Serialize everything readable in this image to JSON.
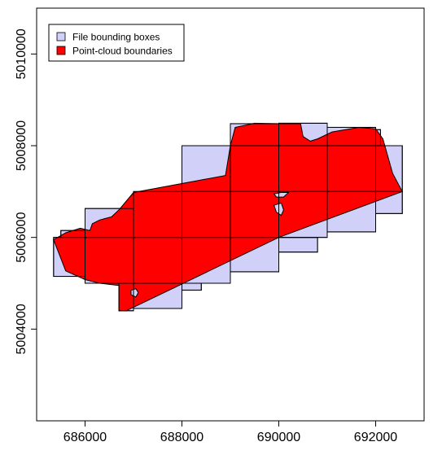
{
  "chart_data": {
    "type": "map",
    "title": "",
    "xlabel": "",
    "ylabel": "",
    "xlim": [
      685000,
      693000
    ],
    "ylim": [
      5002000,
      5011000
    ],
    "x_ticks": [
      686000,
      688000,
      690000,
      692000
    ],
    "y_ticks": [
      5004000,
      5006000,
      5008000,
      5010000
    ],
    "x_tick_labels": [
      "686000",
      "688000",
      "690000",
      "692000"
    ],
    "y_tick_labels": [
      "5004000",
      "5006000",
      "5008000",
      "5010000"
    ],
    "legend_position": "top-left",
    "legend": [
      {
        "label": "File bounding boxes",
        "color": "#d0d0f8"
      },
      {
        "label": "Point-cloud boundaries",
        "color": "#ff0000"
      }
    ],
    "file_bounding_boxes": [
      {
        "xmin": 685350,
        "xmax": 686000,
        "ymin": 5005150,
        "ymax": 5006000
      },
      {
        "xmin": 685500,
        "xmax": 686000,
        "ymin": 5006000,
        "ymax": 5006150
      },
      {
        "xmin": 686000,
        "xmax": 687000,
        "ymin": 5005000,
        "ymax": 5006000
      },
      {
        "xmin": 686000,
        "xmax": 687000,
        "ymin": 5006000,
        "ymax": 5006630
      },
      {
        "xmin": 686700,
        "xmax": 687000,
        "ymin": 5004400,
        "ymax": 5005000
      },
      {
        "xmin": 687000,
        "xmax": 688000,
        "ymin": 5004450,
        "ymax": 5005000
      },
      {
        "xmin": 687000,
        "xmax": 688000,
        "ymin": 5005000,
        "ymax": 5006000
      },
      {
        "xmin": 687000,
        "xmax": 688000,
        "ymin": 5006000,
        "ymax": 5007000
      },
      {
        "xmin": 688000,
        "xmax": 688400,
        "ymin": 5004850,
        "ymax": 5005000
      },
      {
        "xmin": 688000,
        "xmax": 689000,
        "ymin": 5005000,
        "ymax": 5006000
      },
      {
        "xmin": 688000,
        "xmax": 689000,
        "ymin": 5006000,
        "ymax": 5007000
      },
      {
        "xmin": 688000,
        "xmax": 689000,
        "ymin": 5007000,
        "ymax": 5008000
      },
      {
        "xmin": 689000,
        "xmax": 690000,
        "ymin": 5005250,
        "ymax": 5006000
      },
      {
        "xmin": 689000,
        "xmax": 690000,
        "ymin": 5006000,
        "ymax": 5007000
      },
      {
        "xmin": 689000,
        "xmax": 690000,
        "ymin": 5007000,
        "ymax": 5008000
      },
      {
        "xmin": 689000,
        "xmax": 690000,
        "ymin": 5008000,
        "ymax": 5008480
      },
      {
        "xmin": 690000,
        "xmax": 690800,
        "ymin": 5005680,
        "ymax": 5006000
      },
      {
        "xmin": 690000,
        "xmax": 691000,
        "ymin": 5006000,
        "ymax": 5007000
      },
      {
        "xmin": 690000,
        "xmax": 691000,
        "ymin": 5007000,
        "ymax": 5008000
      },
      {
        "xmin": 690000,
        "xmax": 691000,
        "ymin": 5008000,
        "ymax": 5008490
      },
      {
        "xmin": 691000,
        "xmax": 692000,
        "ymin": 5006120,
        "ymax": 5007000
      },
      {
        "xmin": 691000,
        "xmax": 692000,
        "ymin": 5007000,
        "ymax": 5008000
      },
      {
        "xmin": 691000,
        "xmax": 692000,
        "ymin": 5008000,
        "ymax": 5008400
      },
      {
        "xmin": 692000,
        "xmax": 692550,
        "ymin": 5006520,
        "ymax": 5007000
      },
      {
        "xmin": 692000,
        "xmax": 692550,
        "ymin": 5007000,
        "ymax": 5008000
      },
      {
        "xmin": 692000,
        "xmax": 692100,
        "ymin": 5008000,
        "ymax": 5008350
      }
    ],
    "point_cloud_boundary": [
      [
        685350,
        5005950
      ],
      [
        685600,
        5006100
      ],
      [
        685900,
        5006200
      ],
      [
        686100,
        5006150
      ],
      [
        686150,
        5006300
      ],
      [
        686300,
        5006380
      ],
      [
        686550,
        5006450
      ],
      [
        686700,
        5006600
      ],
      [
        687000,
        5006980
      ],
      [
        688900,
        5007350
      ],
      [
        689000,
        5008000
      ],
      [
        689100,
        5008400
      ],
      [
        689500,
        5008490
      ],
      [
        690000,
        5008480
      ],
      [
        690450,
        5008480
      ],
      [
        690500,
        5008200
      ],
      [
        690650,
        5008100
      ],
      [
        690800,
        5008150
      ],
      [
        691100,
        5008300
      ],
      [
        691650,
        5008400
      ],
      [
        692000,
        5008370
      ],
      [
        692150,
        5008150
      ],
      [
        692350,
        5007400
      ],
      [
        692550,
        5007000
      ],
      [
        690000,
        5006000
      ],
      [
        686850,
        5004400
      ],
      [
        686700,
        5004400
      ],
      [
        686700,
        5004950
      ],
      [
        686300,
        5005000
      ],
      [
        686000,
        5005080
      ],
      [
        685600,
        5005270
      ],
      [
        685350,
        5005950
      ]
    ],
    "holes": [
      [
        [
          689900,
          5006950
        ],
        [
          690050,
          5006980
        ],
        [
          690200,
          5006980
        ],
        [
          690100,
          5006880
        ],
        [
          689950,
          5006880
        ]
      ],
      [
        [
          689900,
          5006700
        ],
        [
          690050,
          5006750
        ],
        [
          690100,
          5006600
        ],
        [
          690050,
          5006480
        ],
        [
          689950,
          5006550
        ]
      ],
      [
        [
          686950,
          5004850
        ],
        [
          687050,
          5004880
        ],
        [
          687100,
          5004800
        ],
        [
          687050,
          5004700
        ],
        [
          686950,
          5004750
        ]
      ]
    ]
  }
}
